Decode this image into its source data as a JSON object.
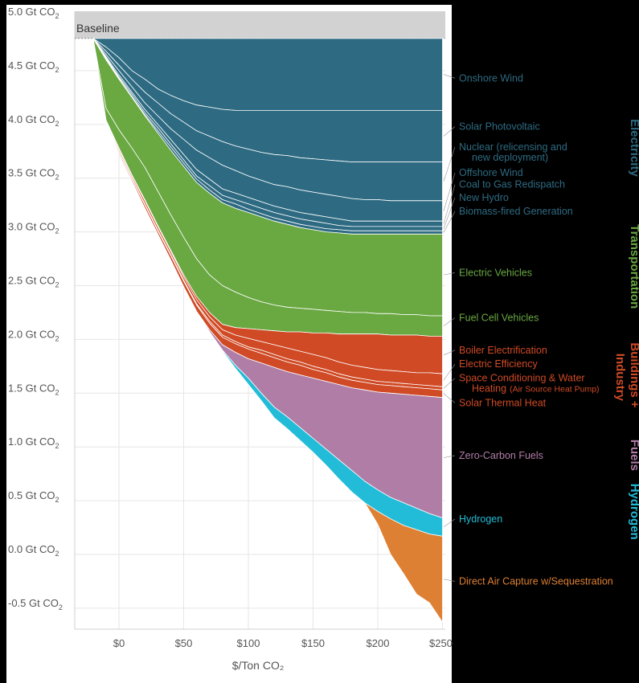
{
  "chart_data": {
    "type": "area",
    "xlabel": "$/Ton CO₂",
    "x_ticks": [
      "$0",
      "$50",
      "$100",
      "$150",
      "$200",
      "$250"
    ],
    "y_ticks": [
      "5.0 Gt CO₂",
      "4.5 Gt CO₂",
      "4.0 Gt CO₂",
      "3.5 Gt CO₂",
      "3.0 Gt CO₂",
      "2.5 Gt CO₂",
      "2.0 Gt CO₂",
      "1.5 Gt CO₂",
      "1.0 Gt CO₂",
      "0.5 Gt CO₂",
      "0.0 Gt CO₂",
      "-0.5 Gt CO₂"
    ],
    "xlim": [
      -35,
      252
    ],
    "ylim": [
      -0.7,
      5.1
    ],
    "baseline_label": "Baseline",
    "baseline_value": 4.8,
    "x": [
      -20,
      -10,
      0,
      10,
      20,
      30,
      40,
      50,
      60,
      70,
      80,
      90,
      100,
      110,
      120,
      130,
      140,
      150,
      160,
      170,
      180,
      190,
      200,
      210,
      220,
      230,
      240,
      250
    ],
    "boundaries": [
      [
        4.8,
        4.72,
        4.62,
        4.5,
        4.42,
        4.33,
        4.27,
        4.22,
        4.18,
        4.16,
        4.14,
        4.13,
        4.13,
        4.13,
        4.13,
        4.13,
        4.13,
        4.13,
        4.13,
        4.13,
        4.13,
        4.13,
        4.13,
        4.13,
        4.13,
        4.13,
        4.13,
        4.13
      ],
      [
        4.8,
        4.68,
        4.55,
        4.42,
        4.3,
        4.2,
        4.1,
        4.02,
        3.94,
        3.89,
        3.84,
        3.8,
        3.77,
        3.74,
        3.72,
        3.71,
        3.69,
        3.68,
        3.67,
        3.66,
        3.65,
        3.65,
        3.65,
        3.65,
        3.65,
        3.65,
        3.65,
        3.65
      ],
      [
        4.8,
        4.65,
        4.5,
        4.35,
        4.2,
        4.08,
        3.96,
        3.86,
        3.76,
        3.69,
        3.62,
        3.57,
        3.52,
        3.48,
        3.44,
        3.42,
        3.39,
        3.37,
        3.35,
        3.33,
        3.31,
        3.3,
        3.3,
        3.29,
        3.29,
        3.29,
        3.29,
        3.29
      ],
      [
        4.8,
        4.63,
        4.46,
        4.3,
        4.14,
        4.0,
        3.86,
        3.72,
        3.58,
        3.49,
        3.4,
        3.36,
        3.32,
        3.28,
        3.24,
        3.21,
        3.18,
        3.16,
        3.14,
        3.12,
        3.1,
        3.1,
        3.1,
        3.1,
        3.1,
        3.1,
        3.1,
        3.1
      ],
      [
        4.8,
        4.62,
        4.44,
        4.28,
        4.11,
        3.97,
        3.82,
        3.67,
        3.52,
        3.43,
        3.34,
        3.3,
        3.26,
        3.22,
        3.18,
        3.15,
        3.12,
        3.1,
        3.08,
        3.06,
        3.05,
        3.05,
        3.05,
        3.05,
        3.05,
        3.05,
        3.05,
        3.05
      ],
      [
        4.8,
        4.61,
        4.43,
        4.26,
        4.09,
        3.94,
        3.79,
        3.64,
        3.49,
        3.39,
        3.3,
        3.26,
        3.21,
        3.17,
        3.13,
        3.1,
        3.07,
        3.05,
        3.03,
        3.02,
        3.01,
        3.01,
        3.01,
        3.01,
        3.01,
        3.01,
        3.01,
        3.01
      ],
      [
        4.8,
        4.6,
        4.42,
        4.25,
        4.08,
        3.92,
        3.76,
        3.61,
        3.46,
        3.36,
        3.27,
        3.22,
        3.18,
        3.14,
        3.1,
        3.07,
        3.04,
        3.02,
        3.0,
        2.99,
        2.98,
        2.98,
        2.98,
        2.98,
        2.98,
        2.98,
        2.98,
        2.98
      ],
      [
        4.8,
        4.15,
        3.95,
        3.78,
        3.6,
        3.38,
        3.16,
        2.95,
        2.75,
        2.6,
        2.5,
        2.44,
        2.39,
        2.35,
        2.32,
        2.3,
        2.29,
        2.28,
        2.27,
        2.26,
        2.25,
        2.25,
        2.24,
        2.24,
        2.23,
        2.23,
        2.22,
        2.22
      ],
      [
        4.8,
        4.04,
        3.78,
        3.53,
        3.3,
        3.06,
        2.83,
        2.6,
        2.4,
        2.25,
        2.14,
        2.11,
        2.1,
        2.09,
        2.08,
        2.07,
        2.07,
        2.06,
        2.06,
        2.05,
        2.05,
        2.05,
        2.05,
        2.04,
        2.04,
        2.04,
        2.03,
        2.03
      ],
      [
        4.8,
        4.03,
        3.77,
        3.52,
        3.29,
        3.05,
        2.82,
        2.58,
        2.37,
        2.21,
        2.09,
        2.04,
        2.01,
        1.98,
        1.95,
        1.92,
        1.89,
        1.86,
        1.83,
        1.79,
        1.76,
        1.74,
        1.72,
        1.71,
        1.7,
        1.69,
        1.69,
        1.68
      ],
      [
        4.8,
        4.02,
        3.75,
        3.5,
        3.26,
        3.02,
        2.79,
        2.55,
        2.33,
        2.17,
        2.04,
        1.98,
        1.93,
        1.9,
        1.86,
        1.82,
        1.79,
        1.75,
        1.72,
        1.68,
        1.65,
        1.63,
        1.61,
        1.6,
        1.59,
        1.58,
        1.57,
        1.56
      ],
      [
        4.8,
        4.01,
        3.74,
        3.49,
        3.25,
        3.01,
        2.78,
        2.54,
        2.32,
        2.15,
        2.02,
        1.96,
        1.91,
        1.87,
        1.83,
        1.79,
        1.76,
        1.72,
        1.69,
        1.65,
        1.62,
        1.6,
        1.58,
        1.57,
        1.56,
        1.55,
        1.54,
        1.53
      ],
      [
        4.8,
        4.0,
        3.72,
        3.47,
        3.22,
        2.98,
        2.74,
        2.49,
        2.26,
        2.09,
        1.95,
        1.88,
        1.82,
        1.78,
        1.74,
        1.7,
        1.67,
        1.64,
        1.61,
        1.58,
        1.55,
        1.53,
        1.51,
        1.5,
        1.49,
        1.48,
        1.47,
        1.46
      ],
      [
        4.8,
        4.0,
        3.72,
        3.47,
        3.22,
        2.98,
        2.74,
        2.49,
        2.26,
        2.07,
        1.9,
        1.76,
        1.64,
        1.5,
        1.37,
        1.28,
        1.18,
        1.08,
        0.98,
        0.88,
        0.78,
        0.68,
        0.6,
        0.53,
        0.48,
        0.43,
        0.38,
        0.34
      ],
      [
        4.8,
        4.0,
        3.72,
        3.47,
        3.22,
        2.98,
        2.74,
        2.49,
        2.26,
        2.07,
        1.89,
        1.73,
        1.58,
        1.43,
        1.27,
        1.17,
        1.06,
        0.95,
        0.83,
        0.7,
        0.58,
        0.48,
        0.4,
        0.33,
        0.27,
        0.23,
        0.19,
        0.17
      ],
      [
        4.8,
        4.0,
        3.72,
        3.47,
        3.22,
        2.98,
        2.74,
        2.49,
        2.26,
        2.07,
        1.89,
        1.73,
        1.58,
        1.43,
        1.27,
        1.17,
        1.06,
        0.95,
        0.83,
        0.7,
        0.58,
        0.48,
        0.28,
        0.0,
        -0.18,
        -0.37,
        -0.45,
        -0.63
      ]
    ],
    "bands": [
      {
        "name": "Onshore Wind",
        "color": "#2e6b82"
      },
      {
        "name": "Solar Photovoltaic",
        "color": "#2e6b82"
      },
      {
        "name": "Nuclear (relicensing and new deployment)",
        "color": "#2e6b82"
      },
      {
        "name": "Offshore Wind",
        "color": "#2e6b82"
      },
      {
        "name": "Coal to Gas Redispatch",
        "color": "#2e6b82"
      },
      {
        "name": "New Hydro",
        "color": "#2e6b82"
      },
      {
        "name": "Biomass-fired Generation",
        "color": "#2e6b82"
      },
      {
        "name": "Electric Vehicles",
        "color": "#6aa842"
      },
      {
        "name": "Fuel Cell Vehicles",
        "color": "#6aa842"
      },
      {
        "name": "Boiler Electrification",
        "color": "#cf4a25"
      },
      {
        "name": "Electric Efficiency",
        "color": "#cf4a25"
      },
      {
        "name": "Space Conditioning & Water Heating",
        "color": "#cf4a25"
      },
      {
        "name": "Solar Thermal Heat",
        "color": "#cf4a25"
      },
      {
        "name": "Zero-Carbon Fuels",
        "color": "#b07da6"
      },
      {
        "name": "Hydrogen",
        "color": "#22bcd8"
      },
      {
        "name": "Direct Air Capture w/Sequestration",
        "color": "#de8033"
      }
    ],
    "labels": [
      {
        "lines": [
          "Onshore Wind"
        ],
        "color": "#2e6b82",
        "y": 4.4
      },
      {
        "lines": [
          "Solar Photovoltaic"
        ],
        "color": "#2e6b82",
        "y": 3.95
      },
      {
        "lines": [
          "Nuclear (relicensing and",
          "new deployment)"
        ],
        "color": "#2e6b82",
        "y": 3.76
      },
      {
        "lines": [
          "Offshore Wind"
        ],
        "color": "#2e6b82",
        "y": 3.52
      },
      {
        "lines": [
          "Coal to Gas Redispatch"
        ],
        "color": "#2e6b82",
        "y": 3.41
      },
      {
        "lines": [
          "New Hydro"
        ],
        "color": "#2e6b82",
        "y": 3.29
      },
      {
        "lines": [
          "Biomass-fired Generation"
        ],
        "color": "#2e6b82",
        "y": 3.16
      },
      {
        "lines": [
          "Electric Vehicles"
        ],
        "color": "#6aa842",
        "y": 2.59
      },
      {
        "lines": [
          "Fuel Cell Vehicles"
        ],
        "color": "#6aa842",
        "y": 2.17
      },
      {
        "lines": [
          "Boiler Electrification"
        ],
        "color": "#cf4a25",
        "y": 1.87
      },
      {
        "lines": [
          "Electric Efficiency"
        ],
        "color": "#cf4a25",
        "y": 1.74
      },
      {
        "lines": [
          "Space Conditioning & Water",
          "Heating"
        ],
        "note": "(Air Source Heat Pump)",
        "color": "#cf4a25",
        "y": 1.61
      },
      {
        "lines": [
          "Solar Thermal Heat"
        ],
        "color": "#cf4a25",
        "y": 1.38
      },
      {
        "lines": [
          "Zero-Carbon Fuels"
        ],
        "color": "#b07da6",
        "y": 0.89
      },
      {
        "lines": [
          "Hydrogen"
        ],
        "color": "#22bcd8",
        "y": 0.3
      },
      {
        "lines": [
          "Direct Air Capture w/Sequestration"
        ],
        "color": "#de8033",
        "y": -0.28
      }
    ],
    "categories": [
      {
        "name": "Electricity",
        "color": "#2e6b82",
        "y_top": 4.05
      },
      {
        "name": "Transportation",
        "color": "#6aa842",
        "y_top": 3.07
      },
      {
        "name": "Buildings +",
        "color": "#cf4a25",
        "y_top": 1.97
      },
      {
        "name": "Industry",
        "color": "#cf4a25",
        "y_top": 1.87
      },
      {
        "name": "Fuels",
        "color": "#b07da6",
        "y_top": 1.07
      },
      {
        "name": "Hydrogen",
        "color": "#22bcd8",
        "y_top": 0.66
      }
    ]
  }
}
